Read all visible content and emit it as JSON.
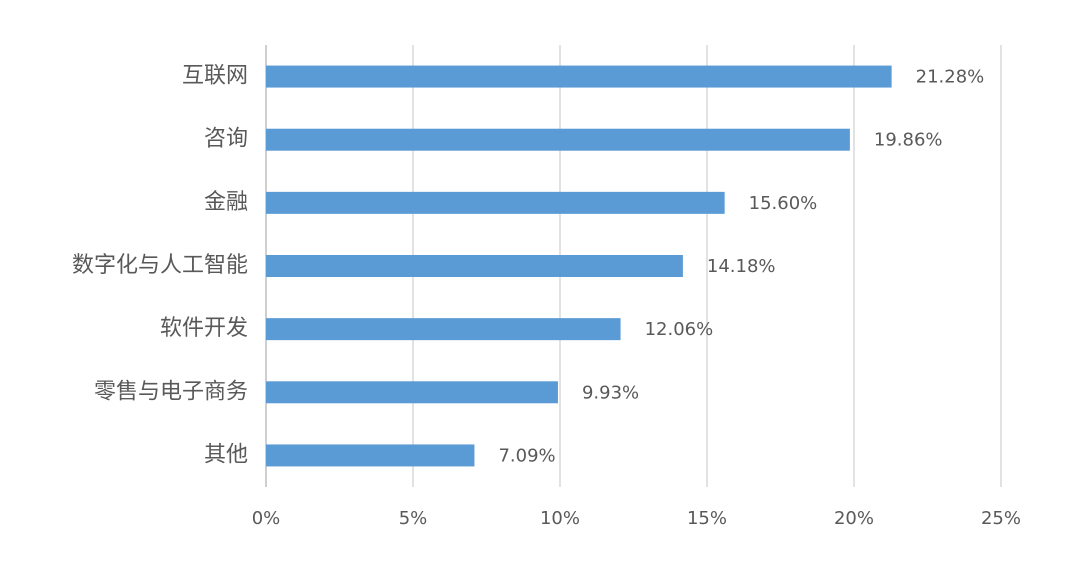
{
  "chart_data": {
    "type": "bar",
    "orientation": "horizontal",
    "categories": [
      "互联网",
      "咨询",
      "金融",
      "数字化与人工智能",
      "软件开发",
      "零售与电子商务",
      "其他"
    ],
    "values": [
      21.28,
      19.86,
      15.6,
      14.18,
      12.06,
      9.93,
      7.09
    ],
    "value_labels": [
      "21.28%",
      "19.86%",
      "15.60%",
      "14.18%",
      "12.06%",
      "9.93%",
      "7.09%"
    ],
    "color": "#5b9bd5",
    "xlim": [
      0,
      25
    ],
    "xticks": [
      {
        "value": 0,
        "label": "0%"
      },
      {
        "value": 5,
        "label": "5%"
      },
      {
        "value": 10,
        "label": "10%"
      },
      {
        "value": 15,
        "label": "15%"
      },
      {
        "value": 20,
        "label": "20%"
      },
      {
        "value": 25,
        "label": "25%"
      }
    ],
    "grid": true
  }
}
